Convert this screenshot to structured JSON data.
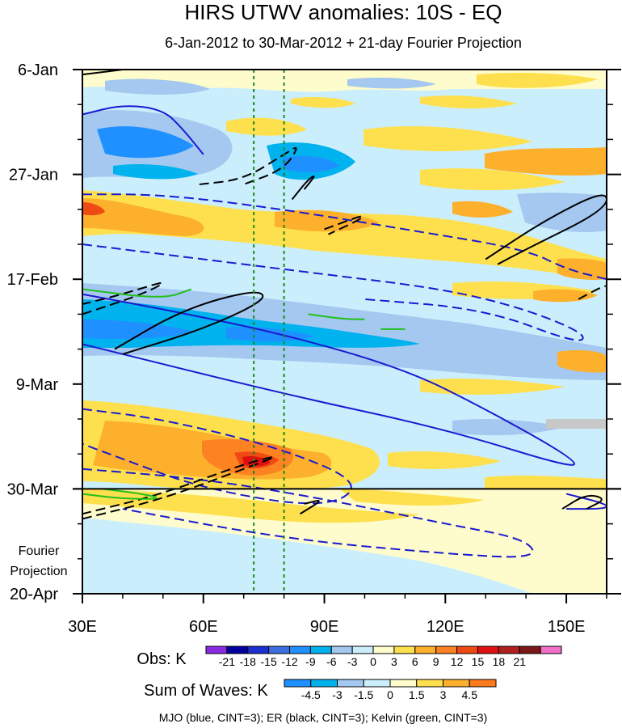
{
  "chart_data": {
    "type": "heatmap",
    "title": "HIRS UTWV anomalies: 10S - EQ",
    "subtitle": "6-Jan-2012 to 30-Mar-2012 + 21-day Fourier Projection",
    "x_axis": {
      "range": [
        30,
        160
      ],
      "unit": "longitude (degrees E)",
      "ticks": [
        {
          "value": 30,
          "label": "30E"
        },
        {
          "value": 60,
          "label": "60E"
        },
        {
          "value": 90,
          "label": "90E"
        },
        {
          "value": 120,
          "label": "120E"
        },
        {
          "value": 150,
          "label": "150E"
        }
      ]
    },
    "y_axis": {
      "range_days": [
        0,
        105
      ],
      "unit": "days since 6-Jan-2012",
      "ticks": [
        {
          "day": 0,
          "label": "6-Jan"
        },
        {
          "day": 21,
          "label": "27-Jan"
        },
        {
          "day": 42,
          "label": "17-Feb"
        },
        {
          "day": 63,
          "label": "9-Mar"
        },
        {
          "day": 84,
          "label": "30-Mar"
        },
        {
          "day": 105,
          "label": "20-Apr"
        }
      ],
      "projection_label_line1": "Fourier",
      "projection_label_line2": "Projection",
      "observation_end_day": 84
    },
    "reference_lines_lon": [
      72.5,
      80
    ],
    "obs_colorbar": {
      "title": "Obs: K",
      "labels": [
        "-21",
        "-18",
        "-15",
        "-12",
        "-9",
        "-6",
        "-3",
        "0",
        "3",
        "6",
        "9",
        "12",
        "15",
        "18",
        "21"
      ],
      "colors": [
        "#8a2be2",
        "#0000a0",
        "#1c2fd0",
        "#3d6fe0",
        "#1e90ff",
        "#00b2ee",
        "#a4c8f0",
        "#cbeefd",
        "#fefccc",
        "#fee04e",
        "#fdb02c",
        "#fd8222",
        "#f04a14",
        "#e01010",
        "#b02020",
        "#7a1818",
        "#f070c8"
      ]
    },
    "waves_colorbar": {
      "title": "Sum of Waves: K",
      "labels": [
        "-4.5",
        "-3",
        "-1.5",
        "0",
        "1.5",
        "3",
        "4.5"
      ],
      "colors": [
        "#1e90ff",
        "#00b2ee",
        "#a4c8f0",
        "#cbeefd",
        "#fefccc",
        "#fee04e",
        "#fdb02c",
        "#fd7a1c"
      ]
    },
    "contours": {
      "caption": "MJO (blue, CINT=3); ER (black, CINT=3); Kelvin (green, CINT=3)",
      "mjo_color": "#1a1ad0",
      "er_color": "#000000",
      "kelvin_color": "#22c01c",
      "mjo": [
        {
          "sign": "positive",
          "points": [
            [
              30,
              9
            ],
            [
              40,
              7
            ],
            [
              50,
              8
            ],
            [
              55,
              12
            ],
            [
              60,
              17
            ]
          ]
        },
        {
          "sign": "negative",
          "points": [
            [
              30,
              25
            ],
            [
              50,
              25
            ],
            [
              80,
              28
            ],
            [
              110,
              32
            ],
            [
              140,
              36
            ],
            [
              150,
              40
            ],
            [
              160,
              42
            ]
          ]
        },
        {
          "sign": "negative",
          "points": [
            [
              30,
              35
            ],
            [
              60,
              38
            ],
            [
              90,
              41
            ],
            [
              120,
              44
            ],
            [
              140,
              48
            ],
            [
              155,
              53
            ],
            [
              153,
              55
            ],
            [
              130,
              48
            ],
            [
              100,
              46
            ]
          ]
        },
        {
          "sign": "positive",
          "points": [
            [
              30,
              45
            ],
            [
              50,
              48
            ],
            [
              80,
              53
            ],
            [
              110,
              60
            ],
            [
              130,
              68
            ],
            [
              152,
              78
            ],
            [
              152,
              80
            ],
            [
              120,
              72
            ],
            [
              80,
              65
            ],
            [
              30,
              55
            ]
          ]
        },
        {
          "sign": "negative",
          "points": [
            [
              30,
              68
            ],
            [
              50,
              70
            ],
            [
              80,
              76
            ],
            [
              100,
              83
            ],
            [
              90,
              88
            ],
            [
              60,
              84
            ],
            [
              40,
              78
            ],
            [
              30,
              75
            ]
          ]
        },
        {
          "sign": "negative",
          "points": [
            [
              30,
              80
            ],
            [
              60,
              82
            ],
            [
              90,
              86
            ],
            [
              120,
              91
            ],
            [
              140,
              94
            ],
            [
              143,
              98
            ],
            [
              120,
              97
            ],
            [
              80,
              94
            ],
            [
              40,
              88
            ]
          ]
        },
        {
          "sign": "positive",
          "points": [
            [
              150,
              85
            ],
            [
              160,
              87
            ],
            [
              160,
              88
            ],
            [
              150,
              88
            ]
          ]
        }
      ],
      "er": [
        {
          "sign": "positive",
          "points": [
            [
              30,
              1
            ],
            [
              40,
              0
            ]
          ]
        },
        {
          "sign": "negative",
          "points": [
            [
              59,
              23
            ],
            [
              70,
              22
            ],
            [
              80,
              17
            ],
            [
              84,
              15
            ],
            [
              80,
              20
            ],
            [
              70,
              23
            ]
          ]
        },
        {
          "sign": "positive",
          "points": [
            [
              82,
              26
            ],
            [
              86,
              22
            ],
            [
              88,
              21
            ],
            [
              85,
              24
            ]
          ]
        },
        {
          "sign": "negative",
          "points": [
            [
              90,
              32
            ],
            [
              100,
              29
            ],
            [
              99,
              30
            ],
            [
              91,
              33
            ]
          ]
        },
        {
          "sign": "positive",
          "points": [
            [
              130,
              38
            ],
            [
              145,
              30
            ],
            [
              160,
              24
            ],
            [
              160,
              28
            ],
            [
              140,
              36
            ],
            [
              133,
              39
            ]
          ]
        },
        {
          "sign": "negative",
          "points": [
            [
              30,
              49
            ],
            [
              45,
              45
            ],
            [
              52,
              42
            ],
            [
              40,
              45
            ],
            [
              30,
              47
            ]
          ]
        },
        {
          "sign": "positive",
          "points": [
            [
              38,
              56
            ],
            [
              55,
              48
            ],
            [
              73,
              44
            ],
            [
              76,
              46
            ],
            [
              60,
              52
            ],
            [
              40,
              57
            ]
          ]
        },
        {
          "sign": "positive",
          "points": [
            [
              84,
              89
            ],
            [
              90,
              86
            ],
            [
              85,
              87
            ]
          ]
        },
        {
          "sign": "negative",
          "points": [
            [
              30,
              90
            ],
            [
              50,
              86
            ],
            [
              70,
              80
            ],
            [
              80,
              77
            ],
            [
              70,
              79
            ],
            [
              50,
              85
            ],
            [
              30,
              89
            ]
          ]
        },
        {
          "sign": "positive",
          "points": [
            [
              149,
              88
            ],
            [
              155,
              85
            ],
            [
              160,
              86
            ],
            [
              155,
              88
            ]
          ]
        },
        {
          "sign": "negative",
          "points": [
            [
              153,
              46
            ],
            [
              160,
              43
            ],
            [
              160,
              44
            ]
          ]
        }
      ],
      "kelvin": [
        {
          "sign": "positive",
          "points": [
            [
              30,
              44
            ],
            [
              50,
              46
            ],
            [
              57,
              44
            ]
          ]
        },
        {
          "sign": "positive",
          "points": [
            [
              86,
              49
            ],
            [
              95,
              50
            ],
            [
              100,
              50
            ]
          ]
        },
        {
          "sign": "positive",
          "points": [
            [
              104,
              52
            ],
            [
              110,
              52
            ]
          ]
        },
        {
          "sign": "positive",
          "points": [
            [
              30,
              85
            ],
            [
              40,
              86
            ],
            [
              50,
              86
            ],
            [
              45,
              85
            ],
            [
              35,
              84
            ]
          ]
        }
      ]
    }
  }
}
